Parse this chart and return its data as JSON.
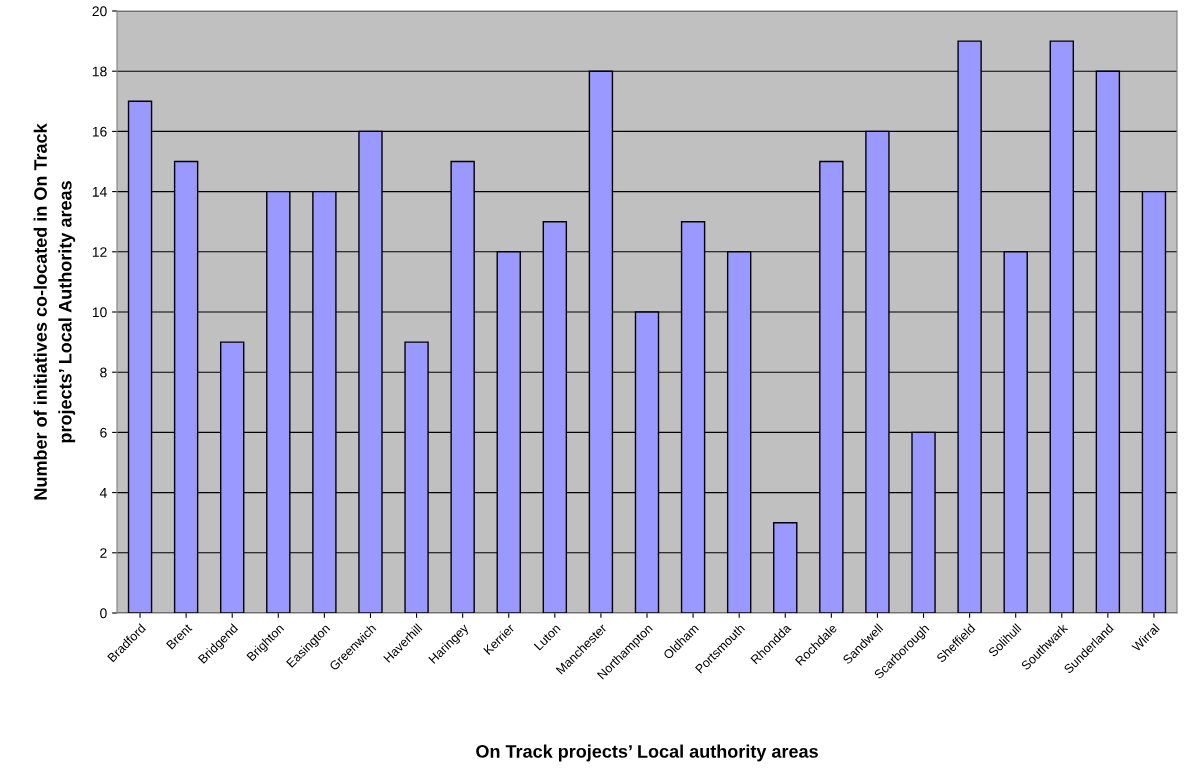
{
  "chart_data": {
    "type": "bar",
    "xlabel": "On Track projects’ Local authority areas",
    "ylabel": "Number of initiatives co-located in On Track\nprojects’ Local Authority areas",
    "categories": [
      "Bradford",
      "Brent",
      "Bridgend",
      "Brighton",
      "Easington",
      "Greenwich",
      "Haverhill",
      "Haringey",
      "Kerrier",
      "Luton",
      "Manchester",
      "Northampton",
      "Oldham",
      "Portsmouth",
      "Rhondda",
      "Rochdale",
      "Sandwell",
      "Scarborough",
      "Sheffield",
      "Solihull",
      "Southwark",
      "Sunderland",
      "Wirral"
    ],
    "values": [
      17,
      15,
      9,
      14,
      14,
      16,
      9,
      15,
      12,
      13,
      18,
      10,
      13,
      12,
      3,
      15,
      16,
      6,
      19,
      12,
      19,
      18,
      14
    ],
    "color": "#9999ff",
    "ylim": [
      0,
      20
    ],
    "yticks": [
      0,
      2,
      4,
      6,
      8,
      10,
      12,
      14,
      16,
      18,
      20
    ],
    "grid": "y",
    "legend": false
  }
}
